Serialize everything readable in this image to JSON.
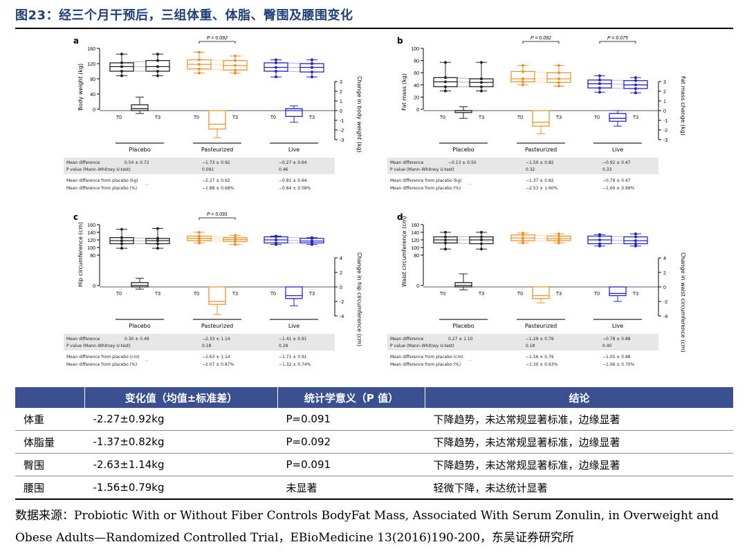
{
  "figure_title": "图23：经三个月干预后，三组体重、体脂、臀围及腰围变化",
  "colors": {
    "placebo": "#222222",
    "pasteurized": "#f0922a",
    "live": "#2222cc",
    "header": "#3a4f8f",
    "title": "#1f3f7a"
  },
  "groups": [
    "Placebo",
    "Pasteurized",
    "Live"
  ],
  "timepoints": [
    "T0",
    "T3"
  ],
  "stats_labels": {
    "mean_difference": "Mean difference",
    "p_value": "P value (Mann–Whitney U-test)",
    "diff_placebo_kg": "Mean difference from placebo (kg)",
    "diff_placebo_cm": "Mean difference from placebo (cm)",
    "diff_placebo_pct": "Mean difference from placebo (%)",
    "dash": "--"
  },
  "chart_data": [
    {
      "type": "box",
      "panel": "a",
      "ylabel_left": "Body weight (kg)",
      "ylabel_right": "Change in body weight (kg)",
      "ylim_left": [
        0,
        160
      ],
      "yticks_left": [
        0,
        40,
        80,
        120,
        160
      ],
      "ylim_right": [
        -3,
        3
      ],
      "yticks_right": [
        -3,
        -2,
        -1,
        0,
        1,
        2,
        3
      ],
      "annotations": [
        {
          "text": "P = 0.092",
          "between": [
            "Pasteurized T0",
            "Pasteurized T3"
          ]
        }
      ],
      "boxes": [
        {
          "group": "Placebo",
          "time": "T0",
          "whisker_low": 88,
          "q1": 100,
          "median": 112,
          "q3": 122,
          "whisker_high": 145
        },
        {
          "group": "Placebo",
          "time": "T3",
          "whisker_low": 88,
          "q1": 100,
          "median": 112,
          "q3": 128,
          "whisker_high": 145
        },
        {
          "group": "Pasteurized",
          "time": "T0",
          "whisker_low": 95,
          "q1": 106,
          "median": 118,
          "q3": 130,
          "whisker_high": 150
        },
        {
          "group": "Pasteurized",
          "time": "T3",
          "whisker_low": 95,
          "q1": 103,
          "median": 115,
          "q3": 128,
          "whisker_high": 140
        },
        {
          "group": "Live",
          "time": "T0",
          "whisker_low": 85,
          "q1": 100,
          "median": 110,
          "q3": 122,
          "whisker_high": 130
        },
        {
          "group": "Live",
          "time": "T3",
          "whisker_low": 85,
          "q1": 98,
          "median": 110,
          "q3": 120,
          "whisker_high": 130
        }
      ],
      "change_boxes": [
        {
          "group": "Placebo",
          "whisker_low": -0.3,
          "q1": 0,
          "median": 0.2,
          "q3": 0.6,
          "whisker_high": 1.4
        },
        {
          "group": "Pasteurized",
          "whisker_low": -2.8,
          "q1": -1.9,
          "median": -1.4,
          "q3": 0,
          "whisker_high": 0
        },
        {
          "group": "Live",
          "whisker_low": -1.2,
          "q1": -0.6,
          "median": 0,
          "q3": 0.2,
          "whisker_high": 0.5
        }
      ],
      "stats": {
        "mean_difference": [
          "0.54 ± 0.72",
          "−1.73 ± 0.92",
          "−0.27 ± 0.64"
        ],
        "p_value": [
          "",
          "0.091",
          "0.46"
        ],
        "diff_placebo_abs": [
          "",
          "−2.27 ± 0.92",
          "−0.81 ± 0.64"
        ],
        "diff_placebo_pct": [
          "",
          "−1.88 ± 0.68%",
          "−0.84 ± 0.58%"
        ]
      }
    },
    {
      "type": "box",
      "panel": "b",
      "ylabel_left": "Fat mass (kg)",
      "ylabel_right": "Fat mass change (kg)",
      "ylim_left": [
        0,
        100
      ],
      "yticks_left": [
        0,
        20,
        40,
        60,
        80,
        100
      ],
      "ylim_right": [
        -3,
        3
      ],
      "yticks_right": [
        -3,
        -2,
        -1,
        0,
        1,
        2,
        3
      ],
      "annotations": [
        {
          "text": "P = 0.092",
          "between": [
            "Pasteurized T0",
            "Pasteurized T3"
          ]
        },
        {
          "text": "P = 0.075",
          "between": [
            "Live T0",
            "Live T3"
          ]
        }
      ],
      "boxes": [
        {
          "group": "Placebo",
          "time": "T0",
          "whisker_low": 30,
          "q1": 37,
          "median": 45,
          "q3": 52,
          "whisker_high": 77
        },
        {
          "group": "Placebo",
          "time": "T3",
          "whisker_low": 30,
          "q1": 37,
          "median": 44,
          "q3": 50,
          "whisker_high": 77
        },
        {
          "group": "Pasteurized",
          "time": "T0",
          "whisker_low": 40,
          "q1": 45,
          "median": 50,
          "q3": 62,
          "whisker_high": 72
        },
        {
          "group": "Pasteurized",
          "time": "T3",
          "whisker_low": 38,
          "q1": 44,
          "median": 50,
          "q3": 60,
          "whisker_high": 72
        },
        {
          "group": "Live",
          "time": "T0",
          "whisker_low": 28,
          "q1": 35,
          "median": 42,
          "q3": 48,
          "whisker_high": 55
        },
        {
          "group": "Live",
          "time": "T3",
          "whisker_low": 27,
          "q1": 34,
          "median": 40,
          "q3": 47,
          "whisker_high": 52
        }
      ],
      "change_boxes": [
        {
          "group": "Placebo",
          "whisker_low": -0.8,
          "q1": -0.2,
          "median": 0,
          "q3": 0,
          "whisker_high": 0.4
        },
        {
          "group": "Pasteurized",
          "whisker_low": -2.4,
          "q1": -1.6,
          "median": -1.2,
          "q3": 0,
          "whisker_high": 0
        },
        {
          "group": "Live",
          "whisker_low": -1.6,
          "q1": -1.1,
          "median": -0.8,
          "q3": -0.3,
          "whisker_high": 0
        }
      ],
      "stats": {
        "mean_difference": [
          "−0.13 ± 0.50",
          "−1.50 ± 0.82",
          "−0.92 ± 0.47"
        ],
        "p_value": [
          "",
          "0.32",
          "0.33"
        ],
        "diff_placebo_abs": [
          "",
          "−1.37 ± 0.82",
          "−0.79 ± 0.47"
        ],
        "diff_placebo_pct": [
          "",
          "−2.53 ± 1.60%",
          "−1.69 ± 0.99%"
        ]
      }
    },
    {
      "type": "box",
      "panel": "c",
      "ylabel_left": "Hip circumference (cm)",
      "ylabel_right": "Change in hip circumference (cm)",
      "ylim_left": [
        0,
        160
      ],
      "yticks_left": [
        0,
        80,
        100,
        120,
        140,
        160
      ],
      "ylim_right": [
        -4,
        4
      ],
      "yticks_right": [
        -4,
        -2,
        0,
        2,
        4
      ],
      "annotations": [
        {
          "text": "P = 0.091",
          "between": [
            "Pasteurized T0",
            "Pasteurized T3"
          ]
        }
      ],
      "boxes": [
        {
          "group": "Placebo",
          "time": "T0",
          "whisker_low": 98,
          "q1": 110,
          "median": 118,
          "q3": 126,
          "whisker_high": 148
        },
        {
          "group": "Placebo",
          "time": "T3",
          "whisker_low": 98,
          "q1": 110,
          "median": 118,
          "q3": 124,
          "whisker_high": 150
        },
        {
          "group": "Pasteurized",
          "time": "T0",
          "whisker_low": 112,
          "q1": 118,
          "median": 124,
          "q3": 130,
          "whisker_high": 140
        },
        {
          "group": "Pasteurized",
          "time": "T3",
          "whisker_low": 108,
          "q1": 116,
          "median": 121,
          "q3": 126,
          "whisker_high": 132
        },
        {
          "group": "Live",
          "time": "T0",
          "whisker_low": 108,
          "q1": 112,
          "median": 120,
          "q3": 128,
          "whisker_high": 130
        },
        {
          "group": "Live",
          "time": "T3",
          "whisker_low": 108,
          "q1": 112,
          "median": 117,
          "q3": 124,
          "whisker_high": 126
        }
      ],
      "change_boxes": [
        {
          "group": "Placebo",
          "whisker_low": -0.3,
          "q1": 0,
          "median": 0.2,
          "q3": 0.6,
          "whisker_high": 1.2
        },
        {
          "group": "Pasteurized",
          "whisker_low": -3.8,
          "q1": -2.4,
          "median": -2.0,
          "q3": 0,
          "whisker_high": 0
        },
        {
          "group": "Live",
          "whisker_low": -2.6,
          "q1": -1.6,
          "median": -1.2,
          "q3": 0,
          "whisker_high": 0
        }
      ],
      "stats": {
        "mean_difference": [
          "0.30 ± 0.49",
          "−2.33 ± 1.14",
          "−1.41 ± 0.91"
        ],
        "p_value": [
          "",
          "0.18",
          "0.28"
        ],
        "diff_placebo_abs": [
          "",
          "−2.63 ± 1.14",
          "−1.71 ± 0.91"
        ],
        "diff_placebo_pct": [
          "",
          "−2.07 ± 0.87%",
          "−1.32 ± 0.74%"
        ]
      }
    },
    {
      "type": "box",
      "panel": "d",
      "ylabel_left": "Waist circumference (cm)",
      "ylabel_right": "Change in waist circumference (cm)",
      "ylim_left": [
        0,
        160
      ],
      "yticks_left": [
        0,
        80,
        100,
        120,
        140,
        160
      ],
      "ylim_right": [
        -4,
        4
      ],
      "yticks_right": [
        -4,
        -2,
        0,
        2,
        4
      ],
      "annotations": [],
      "boxes": [
        {
          "group": "Placebo",
          "time": "T0",
          "whisker_low": 96,
          "q1": 112,
          "median": 120,
          "q3": 128,
          "whisker_high": 140
        },
        {
          "group": "Placebo",
          "time": "T3",
          "whisker_low": 96,
          "q1": 110,
          "median": 120,
          "q3": 128,
          "whisker_high": 140
        },
        {
          "group": "Pasteurized",
          "time": "T0",
          "whisker_low": 112,
          "q1": 118,
          "median": 125,
          "q3": 133,
          "whisker_high": 138
        },
        {
          "group": "Pasteurized",
          "time": "T3",
          "whisker_low": 112,
          "q1": 118,
          "median": 123,
          "q3": 130,
          "whisker_high": 136
        },
        {
          "group": "Live",
          "time": "T0",
          "whisker_low": 104,
          "q1": 110,
          "median": 120,
          "q3": 130,
          "whisker_high": 134
        },
        {
          "group": "Live",
          "time": "T3",
          "whisker_low": 104,
          "q1": 110,
          "median": 118,
          "q3": 128,
          "whisker_high": 136
        }
      ],
      "change_boxes": [
        {
          "group": "Placebo",
          "whisker_low": -0.4,
          "q1": 0,
          "median": 0.2,
          "q3": 0.6,
          "whisker_high": 1.8
        },
        {
          "group": "Pasteurized",
          "whisker_low": -2.2,
          "q1": -1.6,
          "median": -1.2,
          "q3": 0,
          "whisker_high": 0
        },
        {
          "group": "Live",
          "whisker_low": -2.0,
          "q1": -1.2,
          "median": -0.9,
          "q3": 0,
          "whisker_high": 0
        }
      ],
      "stats": {
        "mean_difference": [
          "0.27 ± 1.10",
          "−1.29 ± 0.79",
          "−0.78 ± 0.88"
        ],
        "p_value": [
          "",
          "0.18",
          "0.40"
        ],
        "diff_placebo_abs": [
          "",
          "−1.56 ± 0.79",
          "−1.05 ± 0.88"
        ],
        "diff_placebo_pct": [
          "",
          "−1.30 ± 0.63%",
          "−1.06 ± 0.70%"
        ]
      }
    }
  ],
  "summary_table": {
    "headers": [
      "",
      "变化值（均值±标准差）",
      "统计学意义（P 值）",
      "结论"
    ],
    "rows": [
      [
        "体重",
        "-2.27±0.92kg",
        "P=0.091",
        "下降趋势，未达常规显著标准，边缘显著"
      ],
      [
        "体脂量",
        "-1.37±0.82kg",
        "P=0.092",
        "下降趋势，未达常规显著标准，边缘显著"
      ],
      [
        "臀围",
        "-2.63±1.14kg",
        "P=0.091",
        "下降趋势，未达常规显著标准，边缘显著"
      ],
      [
        "腰围",
        "-1.56±0.79kg",
        "未显著",
        "轻微下降，未达统计显著"
      ]
    ]
  },
  "source": "数据来源：Probiotic With or Without Fiber Controls BodyFat Mass, Associated With Serum Zonulin, in Overweight and Obese Adults—Randomized Controlled Trial，EBioMedicine 13(2016)190-200，东吴证券研究所"
}
